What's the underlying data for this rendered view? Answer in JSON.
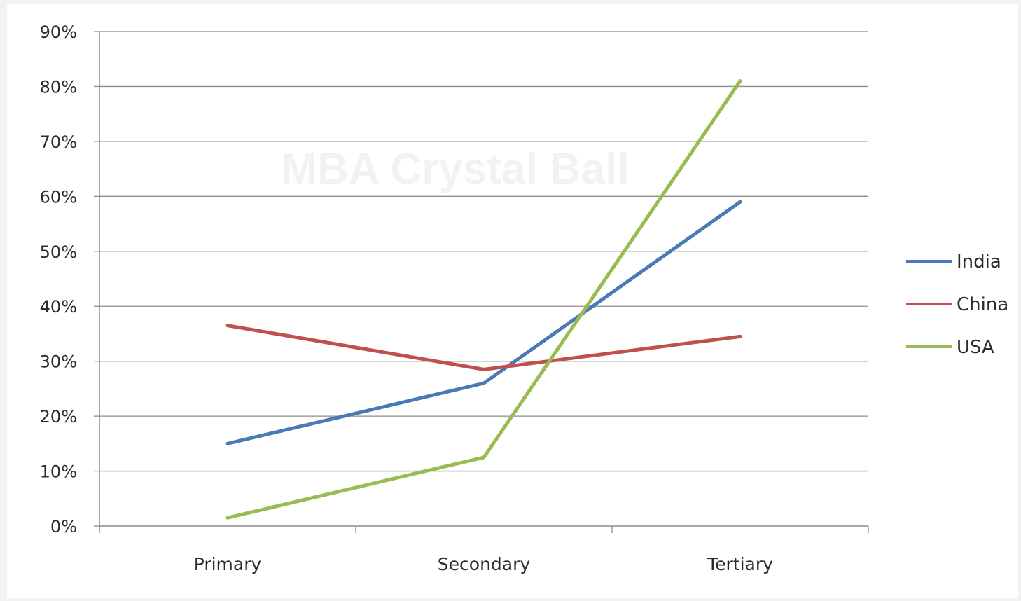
{
  "watermark": "MBA Crystal Ball",
  "chart_data": {
    "type": "line",
    "categories": [
      "Primary",
      "Secondary",
      "Tertiary"
    ],
    "ylim": [
      0,
      90
    ],
    "yticks": [
      0,
      10,
      20,
      30,
      40,
      50,
      60,
      70,
      80,
      90
    ],
    "ytick_labels": [
      "0%",
      "10%",
      "20%",
      "30%",
      "40%",
      "50%",
      "60%",
      "70%",
      "80%",
      "90%"
    ],
    "grid": true,
    "legend_position": "right",
    "series": [
      {
        "name": "India",
        "color": "#4a7ab5",
        "values": [
          15,
          26,
          59
        ]
      },
      {
        "name": "China",
        "color": "#c0504d",
        "values": [
          36.5,
          28.5,
          34.5
        ]
      },
      {
        "name": "USA",
        "color": "#98bb52",
        "values": [
          1.5,
          12.5,
          81
        ]
      }
    ]
  }
}
